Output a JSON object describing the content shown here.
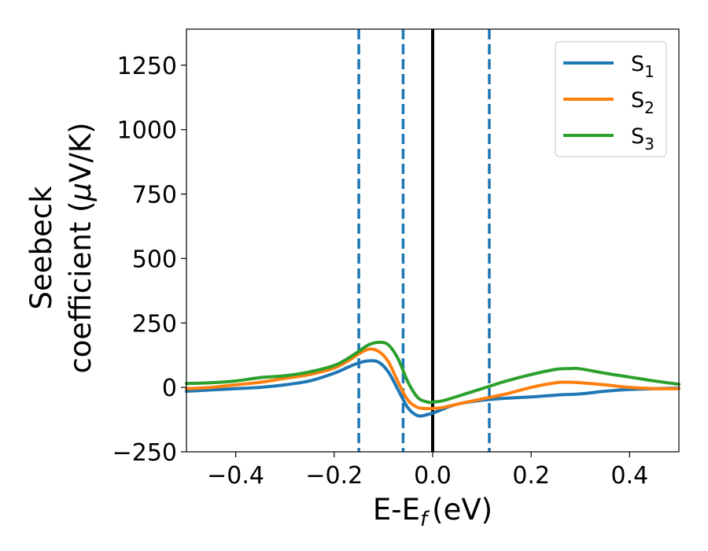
{
  "chart_data": {
    "type": "line",
    "title": "",
    "xlabel": "E-E",
    "xlabel_sub": "f",
    "xlabel_unit": "(eV)",
    "ylabel_line1": "Seebeck",
    "ylabel_line2": "coefficient  (",
    "ylabel_mu": "μ",
    "ylabel_unit_rest": "V/K)",
    "xlim": [
      -0.5,
      0.5
    ],
    "ylim": [
      -250,
      1390
    ],
    "xticks": [
      -0.4,
      -0.2,
      0.0,
      0.2,
      0.4
    ],
    "xtick_labels": [
      "−0.4",
      "−0.2",
      "0.0",
      "0.2",
      "0.4"
    ],
    "yticks": [
      -250,
      0,
      250,
      500,
      750,
      1000,
      1250
    ],
    "ytick_labels": [
      "−250",
      "0",
      "250",
      "500",
      "750",
      "1000",
      "1250"
    ],
    "grid": false,
    "legend_position": "top-right",
    "vertical_lines": [
      {
        "x": -0.15,
        "style": "dashed",
        "color": "#1f77b4"
      },
      {
        "x": -0.06,
        "style": "dashed",
        "color": "#1f77b4"
      },
      {
        "x": 0.0,
        "style": "solid",
        "color": "#000000"
      },
      {
        "x": 0.115,
        "style": "dashed",
        "color": "#1f77b4"
      }
    ],
    "series": [
      {
        "name": "S",
        "name_sub": "1",
        "color": "#1f77b4",
        "x": [
          -0.5,
          -0.45,
          -0.4,
          -0.35,
          -0.3,
          -0.25,
          -0.2,
          -0.17,
          -0.15,
          -0.13,
          -0.11,
          -0.09,
          -0.07,
          -0.05,
          -0.03,
          -0.01,
          0.0,
          0.02,
          0.05,
          0.1,
          0.15,
          0.2,
          0.25,
          0.3,
          0.35,
          0.4,
          0.45,
          0.5
        ],
        "y": [
          -15,
          -10,
          -5,
          0,
          10,
          25,
          55,
          80,
          95,
          103,
          98,
          60,
          -10,
          -80,
          -110,
          -105,
          -100,
          -85,
          -65,
          -50,
          -42,
          -37,
          -30,
          -25,
          -15,
          -8,
          -5,
          -3
        ]
      },
      {
        "name": "S",
        "name_sub": "2",
        "color": "#ff7f0e",
        "x": [
          -0.5,
          -0.45,
          -0.4,
          -0.35,
          -0.3,
          -0.25,
          -0.2,
          -0.17,
          -0.15,
          -0.13,
          -0.11,
          -0.09,
          -0.07,
          -0.05,
          -0.03,
          -0.01,
          0.0,
          0.02,
          0.05,
          0.1,
          0.15,
          0.2,
          0.25,
          0.28,
          0.3,
          0.35,
          0.4,
          0.45,
          0.5
        ],
        "y": [
          -5,
          0,
          10,
          20,
          35,
          50,
          75,
          105,
          130,
          148,
          140,
          100,
          20,
          -50,
          -78,
          -82,
          -82,
          -78,
          -65,
          -45,
          -25,
          0,
          18,
          20,
          18,
          10,
          0,
          -5,
          -5
        ]
      },
      {
        "name": "S",
        "name_sub": "3",
        "color": "#2ca02c",
        "x": [
          -0.5,
          -0.45,
          -0.4,
          -0.35,
          -0.3,
          -0.25,
          -0.2,
          -0.17,
          -0.15,
          -0.13,
          -0.11,
          -0.09,
          -0.07,
          -0.05,
          -0.03,
          -0.01,
          0.0,
          0.02,
          0.05,
          0.1,
          0.15,
          0.2,
          0.25,
          0.28,
          0.3,
          0.35,
          0.4,
          0.45,
          0.5
        ],
        "y": [
          15,
          18,
          25,
          38,
          45,
          60,
          85,
          115,
          140,
          165,
          175,
          165,
          110,
          20,
          -40,
          -57,
          -57,
          -52,
          -35,
          -5,
          25,
          50,
          70,
          73,
          72,
          55,
          40,
          25,
          12
        ]
      }
    ]
  }
}
